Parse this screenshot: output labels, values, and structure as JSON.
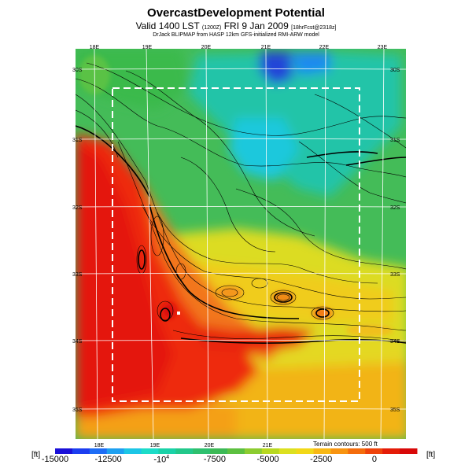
{
  "header": {
    "title": "OvercastDevelopment Potential",
    "valid_prefix": "Valid 1400 LST",
    "valid_code": "(1200Z)",
    "valid_date": "FRI 9 Jan 2009",
    "valid_suffix": "[18hrFcst@2318z]",
    "model_line": "DrJack BLIPMAP from HASP 12km GFS-initialized RMI-ARW model"
  },
  "map": {
    "top_lon_labels": [
      "18E",
      "19E",
      "20E",
      "21E",
      "22E",
      "23E"
    ],
    "bottom_lon_labels": [
      "18E",
      "19E",
      "20E",
      "21E"
    ],
    "left_lat_labels": [
      "30S",
      "31S",
      "32S",
      "33S",
      "34S",
      "35S"
    ],
    "right_lat_labels": [
      "30S",
      "31S",
      "32S",
      "33S",
      "34S",
      "35S"
    ],
    "terrain_note": "Terrain contours: 500 ft"
  },
  "colorbar": {
    "unit_left": "[ft]",
    "unit_right": "[ft]",
    "ticks": [
      "-15000",
      "-12500",
      "-10",
      "-7500",
      "-5000",
      "-2500",
      "0"
    ],
    "tick_sup": "4",
    "colors": [
      "#1a10d8",
      "#1c3ef0",
      "#1d6cf5",
      "#1ea0f0",
      "#1cc6e6",
      "#1cdcc8",
      "#1ad2a8",
      "#22c88a",
      "#2ec06e",
      "#3cb956",
      "#5cc040",
      "#8ccc30",
      "#b8d820",
      "#dce020",
      "#f2d818",
      "#f8b814",
      "#f89410",
      "#f46c0c",
      "#ee420a",
      "#e41c08",
      "#d80808"
    ],
    "min": -15000,
    "max": 2000,
    "tick_values": [
      -15000,
      -12500,
      -10000,
      -7500,
      -5000,
      -2500,
      0
    ]
  },
  "legend_colors": {
    "land_hot": "#f01e0c",
    "coast_orange": "#f6961a",
    "mid_yellow": "#e8e21c",
    "green": "#3cba50",
    "cyan": "#22c8c8",
    "deep_blue": "#2040d8"
  }
}
